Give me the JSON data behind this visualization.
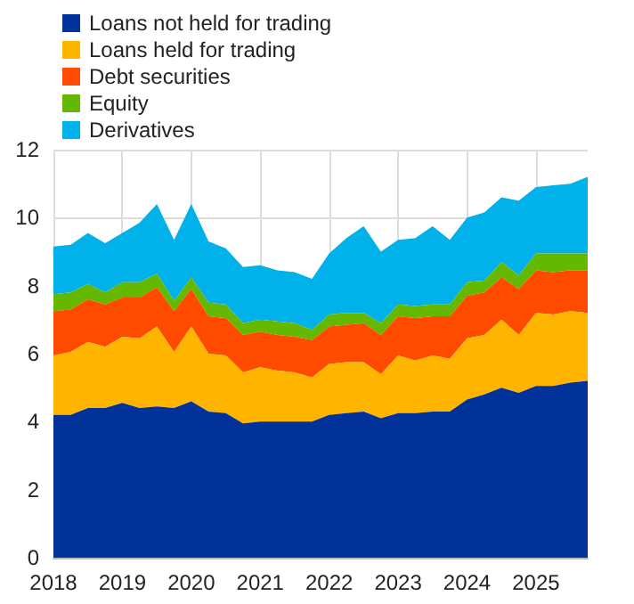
{
  "chart_data": {
    "type": "area",
    "stacked": true,
    "x": [
      2018,
      2018.25,
      2018.5,
      2018.75,
      2019,
      2019.25,
      2019.5,
      2019.75,
      2020,
      2020.25,
      2020.5,
      2020.75,
      2021,
      2021.25,
      2021.5,
      2021.75,
      2022,
      2022.25,
      2022.5,
      2022.75,
      2023,
      2023.25,
      2023.5,
      2023.75,
      2024,
      2024.25,
      2024.5,
      2024.75,
      2025,
      2025.25,
      2025.5,
      2025.75
    ],
    "series": [
      {
        "name": "Loans not held for trading",
        "color": "#003299",
        "values": [
          4.2,
          4.2,
          4.4,
          4.4,
          4.55,
          4.4,
          4.45,
          4.4,
          4.6,
          4.3,
          4.25,
          3.95,
          4.0,
          4.0,
          4.0,
          4.0,
          4.2,
          4.25,
          4.3,
          4.1,
          4.25,
          4.25,
          4.3,
          4.3,
          4.65,
          4.8,
          5.0,
          4.85,
          5.05,
          5.05,
          5.15,
          5.2
        ]
      },
      {
        "name": "Loans held for trading",
        "color": "#ffb400",
        "values": [
          1.75,
          1.85,
          1.95,
          1.8,
          1.95,
          2.05,
          2.35,
          1.65,
          2.2,
          1.7,
          1.7,
          1.5,
          1.6,
          1.5,
          1.45,
          1.3,
          1.5,
          1.5,
          1.45,
          1.3,
          1.7,
          1.55,
          1.65,
          1.55,
          1.8,
          1.75,
          2.0,
          1.7,
          2.15,
          2.1,
          2.1,
          2.0
        ]
      },
      {
        "name": "Debt securities",
        "color": "#ff4b00",
        "values": [
          1.3,
          1.25,
          1.25,
          1.25,
          1.15,
          1.2,
          1.15,
          1.2,
          1.1,
          1.1,
          1.1,
          1.1,
          1.05,
          1.05,
          1.05,
          1.1,
          1.1,
          1.1,
          1.15,
          1.15,
          1.15,
          1.25,
          1.15,
          1.25,
          1.25,
          1.25,
          1.25,
          1.35,
          1.25,
          1.25,
          1.2,
          1.25
        ]
      },
      {
        "name": "Equity",
        "color": "#65b800",
        "values": [
          0.5,
          0.5,
          0.45,
          0.35,
          0.45,
          0.45,
          0.4,
          0.3,
          0.35,
          0.4,
          0.4,
          0.35,
          0.35,
          0.4,
          0.4,
          0.3,
          0.35,
          0.35,
          0.3,
          0.35,
          0.35,
          0.35,
          0.35,
          0.35,
          0.4,
          0.35,
          0.45,
          0.4,
          0.5,
          0.55,
          0.5,
          0.5
        ]
      },
      {
        "name": "Derivatives",
        "color": "#00b1ea",
        "values": [
          1.4,
          1.4,
          1.5,
          1.45,
          1.45,
          1.75,
          2.05,
          1.8,
          2.15,
          1.8,
          1.65,
          1.65,
          1.6,
          1.5,
          1.5,
          1.5,
          1.8,
          2.2,
          2.55,
          2.1,
          1.9,
          2.0,
          2.3,
          1.9,
          1.9,
          2.0,
          1.9,
          2.2,
          1.95,
          2.0,
          2.05,
          2.25
        ]
      }
    ],
    "xlim": [
      2018,
      2025.75
    ],
    "xticks": [
      2018,
      2019,
      2020,
      2021,
      2022,
      2023,
      2024,
      2025
    ],
    "ylim": [
      0,
      12
    ],
    "yticks": [
      0,
      2,
      4,
      6,
      8,
      10,
      12
    ],
    "grid": true,
    "legend": "top left"
  }
}
